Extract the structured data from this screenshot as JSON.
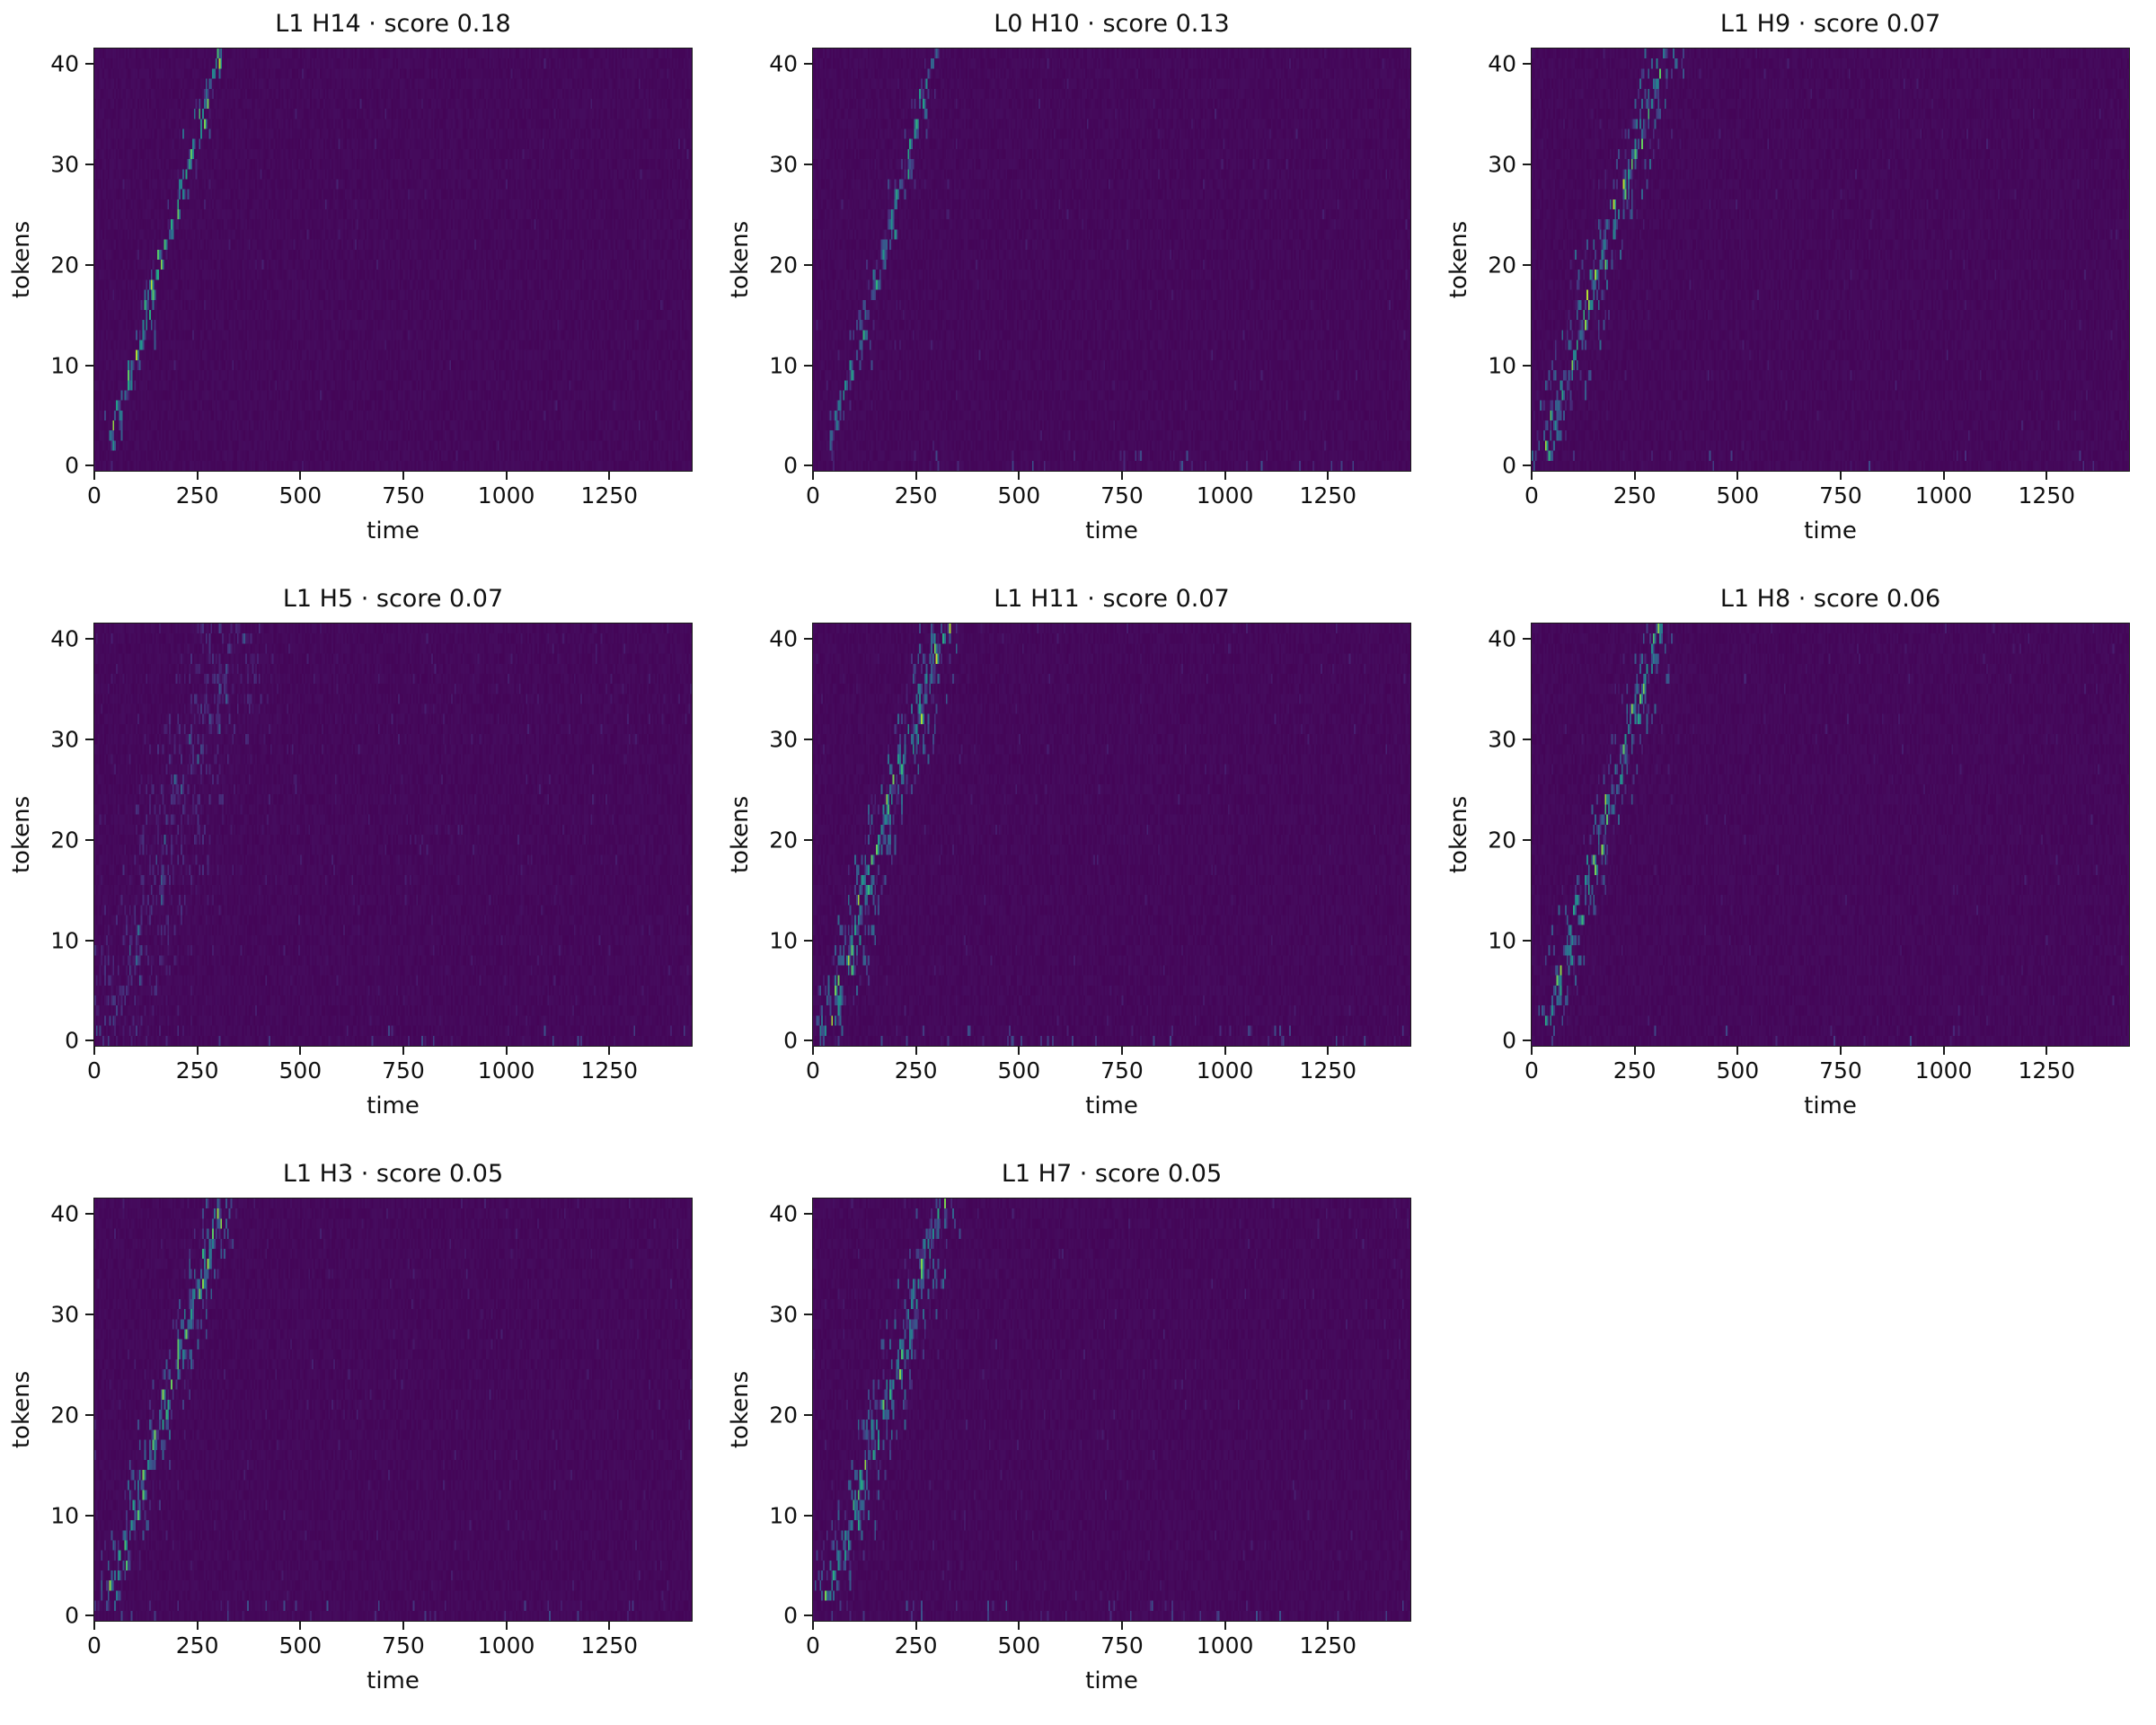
{
  "figure": {
    "description": "Grid of attention-alignment heatmaps per layer/head",
    "background_color": "#ffffff",
    "text_color": "#111111"
  },
  "chart_data": {
    "type": "heatmap",
    "layout": {
      "rows": 3,
      "cols": 3,
      "xlabel": "time",
      "ylabel": "tokens",
      "x_ticks": [
        0,
        250,
        500,
        750,
        1000,
        1250
      ],
      "y_ticks": [
        0,
        10,
        20,
        30,
        40
      ],
      "x_range": [
        0,
        1450
      ],
      "y_range": [
        -0.5,
        41.5
      ],
      "colormap": "viridis",
      "heatmap_background": "#440154",
      "grid": false,
      "legend": false
    },
    "subplots": [
      {
        "title": "L1 H14 · score 0.18",
        "layer": "L1",
        "head": "H14",
        "score": 0.18,
        "alignment": {
          "seed": 1,
          "t_start": 25,
          "t_end": 300,
          "intensity": 0.95,
          "spread": 3,
          "jitter": 18,
          "cloud": 2,
          "bg": 120,
          "floor": 0,
          "k_start": 2
        }
      },
      {
        "title": "L0 H10 · score 0.13",
        "layer": "L0",
        "head": "H10",
        "score": 0.13,
        "alignment": {
          "seed": 2,
          "t_start": 25,
          "t_end": 300,
          "intensity": 0.65,
          "spread": 3,
          "jitter": 22,
          "cloud": 2,
          "bg": 150,
          "floor": 25,
          "k_start": 2
        }
      },
      {
        "title": "L1 H9 · score 0.07",
        "layer": "L1",
        "head": "H9",
        "score": 0.07,
        "alignment": {
          "seed": 3,
          "t_start": 20,
          "t_end": 310,
          "intensity": 0.9,
          "spread": 6,
          "jitter": 20,
          "cloud": 6,
          "bg": 150,
          "floor": 10,
          "k_start": 1
        }
      },
      {
        "title": "L1 H5 · score 0.07",
        "layer": "L1",
        "head": "H5",
        "score": 0.07,
        "alignment": {
          "seed": 4,
          "t_start": 20,
          "t_end": 330,
          "intensity": 0.38,
          "spread": 12,
          "jitter": 40,
          "cloud": 14,
          "bg": 420,
          "floor": 20,
          "k_start": 0
        }
      },
      {
        "title": "L1 H11 · score 0.07",
        "layer": "L1",
        "head": "H11",
        "score": 0.07,
        "alignment": {
          "seed": 5,
          "t_start": 20,
          "t_end": 310,
          "intensity": 0.92,
          "spread": 6,
          "jitter": 20,
          "cloud": 8,
          "bg": 200,
          "floor": 40,
          "k_start": 1
        }
      },
      {
        "title": "L1 H8 · score 0.06",
        "layer": "L1",
        "head": "H8",
        "score": 0.06,
        "alignment": {
          "seed": 6,
          "t_start": 22,
          "t_end": 305,
          "intensity": 0.85,
          "spread": 5,
          "jitter": 20,
          "cloud": 5,
          "bg": 150,
          "floor": 10,
          "k_start": 2
        }
      },
      {
        "title": "L1 H3 · score 0.05",
        "layer": "L1",
        "head": "H3",
        "score": 0.05,
        "alignment": {
          "seed": 7,
          "t_start": 25,
          "t_end": 300,
          "intensity": 0.85,
          "spread": 5,
          "jitter": 22,
          "cloud": 6,
          "bg": 250,
          "floor": 30,
          "k_start": 2
        }
      },
      {
        "title": "L1 H7 · score 0.05",
        "layer": "L1",
        "head": "H7",
        "score": 0.05,
        "alignment": {
          "seed": 8,
          "t_start": 22,
          "t_end": 310,
          "intensity": 0.88,
          "spread": 6,
          "jitter": 20,
          "cloud": 7,
          "bg": 220,
          "floor": 35,
          "k_start": 2
        }
      }
    ]
  }
}
